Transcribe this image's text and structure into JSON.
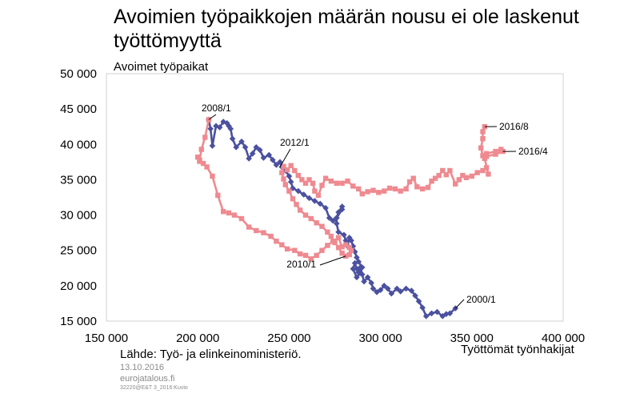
{
  "title": "Avoimien työpaikkojen määrän nousu ei ole laskenut työttömyyttä",
  "source": "Lähde: Työ- ja elinkeinoministeriö.",
  "meta": {
    "date": "13.10.2016",
    "site": "eurojatalous.fi",
    "code": "32220@E&T 3_2016:Kuvio"
  },
  "chart_data": {
    "type": "line",
    "ylabel": "Avoimet työpaikat",
    "xlabel": "Työttömät työnhakijat",
    "xlim": [
      150000,
      400000
    ],
    "ylim": [
      15000,
      50000
    ],
    "xticks": [
      {
        "value": 150000,
        "label": "150 000"
      },
      {
        "value": 200000,
        "label": "200 000"
      },
      {
        "value": 250000,
        "label": "250 000"
      },
      {
        "value": 300000,
        "label": "300 000"
      },
      {
        "value": 350000,
        "label": "350 000"
      },
      {
        "value": 400000,
        "label": "400 000"
      }
    ],
    "yticks": [
      {
        "value": 15000,
        "label": "15 000"
      },
      {
        "value": 20000,
        "label": "20 000"
      },
      {
        "value": 25000,
        "label": "25 000"
      },
      {
        "value": 30000,
        "label": "30 000"
      },
      {
        "value": 35000,
        "label": "35 000"
      },
      {
        "value": 40000,
        "label": "40 000"
      },
      {
        "value": 45000,
        "label": "45 000"
      },
      {
        "value": 50000,
        "label": "50 000"
      }
    ],
    "colors": {
      "series1": "#4b519f",
      "series2": "#ee8a90"
    },
    "series": [
      {
        "color": "#4b519f",
        "marker": "diamond",
        "points": [
          [
            341000,
            16800
          ],
          [
            338000,
            16100
          ],
          [
            336000,
            16000
          ],
          [
            334000,
            15700
          ],
          [
            331000,
            16300
          ],
          [
            328000,
            16100
          ],
          [
            325000,
            15700
          ],
          [
            323000,
            16900
          ],
          [
            321000,
            17800
          ],
          [
            319000,
            18600
          ],
          [
            317000,
            19300
          ],
          [
            314000,
            19600
          ],
          [
            311000,
            19200
          ],
          [
            309000,
            19600
          ],
          [
            306000,
            18900
          ],
          [
            304000,
            19600
          ],
          [
            302000,
            20000
          ],
          [
            300000,
            19400
          ],
          [
            298000,
            19100
          ],
          [
            296000,
            19600
          ],
          [
            295000,
            20400
          ],
          [
            293000,
            21200
          ],
          [
            291000,
            20600
          ],
          [
            290000,
            21600
          ],
          [
            289000,
            22600
          ],
          [
            288000,
            21900
          ],
          [
            287000,
            22400
          ],
          [
            286000,
            23200
          ],
          [
            285000,
            22400
          ],
          [
            287000,
            21200
          ],
          [
            289000,
            21800
          ],
          [
            290000,
            22600
          ],
          [
            288000,
            23400
          ],
          [
            287000,
            24000
          ],
          [
            286000,
            24800
          ],
          [
            285000,
            25600
          ],
          [
            284000,
            26400
          ],
          [
            283000,
            26800
          ],
          [
            282000,
            25600
          ],
          [
            281000,
            26400
          ],
          [
            280000,
            27200
          ],
          [
            277000,
            27600
          ],
          [
            276000,
            28800
          ],
          [
            276000,
            29600
          ],
          [
            277000,
            30400
          ],
          [
            279000,
            31200
          ],
          [
            279000,
            30800
          ],
          [
            276000,
            29600
          ],
          [
            274000,
            29200
          ],
          [
            272000,
            29600
          ],
          [
            270000,
            31000
          ],
          [
            267000,
            31600
          ],
          [
            264000,
            32000
          ],
          [
            261000,
            32400
          ],
          [
            258000,
            32900
          ],
          [
            255000,
            33400
          ],
          [
            252000,
            33800
          ],
          [
            251000,
            34700
          ],
          [
            250000,
            35500
          ],
          [
            248000,
            36300
          ],
          [
            246000,
            36800
          ],
          [
            245000,
            37500
          ],
          [
            243000,
            37100
          ],
          [
            241000,
            37800
          ],
          [
            239000,
            38500
          ],
          [
            236000,
            38100
          ],
          [
            234000,
            39200
          ],
          [
            232000,
            39600
          ],
          [
            230000,
            38700
          ],
          [
            228000,
            38000
          ],
          [
            226000,
            39600
          ],
          [
            224000,
            40400
          ],
          [
            221000,
            39600
          ],
          [
            219000,
            40800
          ],
          [
            218000,
            42200
          ],
          [
            217000,
            42600
          ],
          [
            216000,
            43000
          ],
          [
            214000,
            43200
          ],
          [
            212000,
            42400
          ],
          [
            210000,
            42600
          ],
          [
            208000,
            39800
          ],
          [
            207000,
            42200
          ],
          [
            206000,
            43500
          ]
        ]
      },
      {
        "color": "#ee8a90",
        "marker": "square",
        "points": [
          [
            206000,
            43500
          ],
          [
            204000,
            41000
          ],
          [
            202000,
            39300
          ],
          [
            201000,
            37800
          ],
          [
            200000,
            38200
          ],
          [
            201000,
            37600
          ],
          [
            203000,
            37300
          ],
          [
            205000,
            36800
          ],
          [
            208000,
            35500
          ],
          [
            211000,
            32800
          ],
          [
            214000,
            30500
          ],
          [
            217000,
            30300
          ],
          [
            220000,
            30000
          ],
          [
            224000,
            29500
          ],
          [
            228000,
            28300
          ],
          [
            232000,
            27800
          ],
          [
            236000,
            27500
          ],
          [
            240000,
            27000
          ],
          [
            243000,
            26300
          ],
          [
            246000,
            25800
          ],
          [
            249000,
            25200
          ],
          [
            253000,
            25000
          ],
          [
            256000,
            24500
          ],
          [
            259000,
            24300
          ],
          [
            262000,
            23800
          ],
          [
            265000,
            24300
          ],
          [
            268000,
            25000
          ],
          [
            271000,
            25700
          ],
          [
            274000,
            26300
          ],
          [
            277000,
            26800
          ],
          [
            279000,
            25500
          ],
          [
            281000,
            25800
          ],
          [
            283000,
            25400
          ],
          [
            284000,
            25000
          ],
          [
            283000,
            24400
          ],
          [
            281000,
            24200
          ],
          [
            279000,
            24600
          ],
          [
            277000,
            25400
          ],
          [
            275000,
            26100
          ],
          [
            273000,
            27000
          ],
          [
            271000,
            27600
          ],
          [
            268000,
            28400
          ],
          [
            265000,
            28900
          ],
          [
            262000,
            29500
          ],
          [
            259000,
            30000
          ],
          [
            256000,
            30700
          ],
          [
            254000,
            31500
          ],
          [
            252000,
            32300
          ],
          [
            250000,
            33400
          ],
          [
            248000,
            34300
          ],
          [
            247000,
            35100
          ],
          [
            246000,
            36000
          ],
          [
            247000,
            36900
          ],
          [
            249000,
            36400
          ],
          [
            251000,
            37000
          ],
          [
            253000,
            36300
          ],
          [
            255000,
            35600
          ],
          [
            257000,
            35000
          ],
          [
            259000,
            34500
          ],
          [
            261000,
            35000
          ],
          [
            263000,
            34500
          ],
          [
            264000,
            33400
          ],
          [
            266000,
            32800
          ],
          [
            268000,
            34200
          ],
          [
            270000,
            35200
          ],
          [
            273000,
            34800
          ],
          [
            276000,
            34500
          ],
          [
            279000,
            34500
          ],
          [
            282000,
            34800
          ],
          [
            285000,
            34100
          ],
          [
            288000,
            33700
          ],
          [
            290000,
            33000
          ],
          [
            293000,
            33300
          ],
          [
            296000,
            33500
          ],
          [
            299000,
            33200
          ],
          [
            302000,
            33400
          ],
          [
            305000,
            33800
          ],
          [
            308000,
            33700
          ],
          [
            311000,
            33400
          ],
          [
            314000,
            33700
          ],
          [
            316000,
            34700
          ],
          [
            318000,
            35200
          ],
          [
            320000,
            34000
          ],
          [
            323000,
            33700
          ],
          [
            326000,
            33900
          ],
          [
            328000,
            34800
          ],
          [
            330000,
            35200
          ],
          [
            332000,
            35600
          ],
          [
            334000,
            36300
          ],
          [
            336000,
            35700
          ],
          [
            338000,
            36300
          ],
          [
            341000,
            34400
          ],
          [
            343000,
            35000
          ],
          [
            345000,
            35600
          ],
          [
            347000,
            35300
          ],
          [
            350000,
            35500
          ],
          [
            353000,
            36000
          ],
          [
            356000,
            36300
          ],
          [
            358000,
            36700
          ],
          [
            359000,
            35800
          ],
          [
            357000,
            38000
          ],
          [
            358000,
            38700
          ],
          [
            363000,
            39000
          ],
          [
            366000,
            39300
          ],
          [
            367000,
            39000
          ],
          [
            363000,
            38600
          ],
          [
            358000,
            38300
          ],
          [
            356000,
            38400
          ],
          [
            355000,
            39500
          ],
          [
            356000,
            40800
          ],
          [
            356000,
            41800
          ],
          [
            357000,
            42500
          ]
        ]
      }
    ],
    "annotations": [
      {
        "label": "2008/1",
        "x": 206000,
        "y": 43500
      },
      {
        "label": "2012/1",
        "x": 245000,
        "y": 36800
      },
      {
        "label": "2010/1",
        "x": 281000,
        "y": 24200
      },
      {
        "label": "2000/1",
        "x": 341000,
        "y": 16800
      },
      {
        "label": "2016/8",
        "x": 357000,
        "y": 42500
      },
      {
        "label": "2016/4",
        "x": 367000,
        "y": 39000
      }
    ]
  }
}
